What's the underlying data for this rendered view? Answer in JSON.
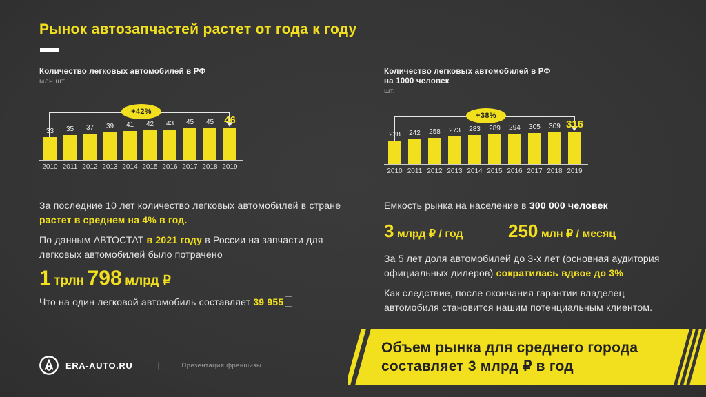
{
  "colors": {
    "accent_yellow": "#f2e01e",
    "background": "#363636",
    "text_primary": "#e6e6e6",
    "text_muted": "#a5a5a5",
    "banner_text": "#222222"
  },
  "slide": {
    "title": "Рынок автозапчастей растет от года к году",
    "footer": {
      "brand": "ERA-AUTO.RU",
      "divider": "|",
      "caption": "Презентация франшизы"
    },
    "banner": {
      "line1": "Объем рынка для среднего города",
      "line2": "составляет 3 млрд ₽ в год"
    }
  },
  "chart_data": [
    {
      "type": "bar",
      "title": "Количество легковых автомобилей в РФ",
      "title_line2": "",
      "subtitle": "млн шт.",
      "categories": [
        "2010",
        "2011",
        "2012",
        "2013",
        "2014",
        "2015",
        "2016",
        "2017",
        "2018",
        "2019"
      ],
      "values": [
        33,
        35,
        37,
        39,
        41,
        42,
        43,
        45,
        45,
        46
      ],
      "growth_badge": "+42%",
      "xlabel": "",
      "ylabel": "млн шт.",
      "ylim": [
        0,
        46
      ],
      "grid": false,
      "legend": false,
      "annotation": "growth bracket from 2010 to 2019 with arrow, last value highlighted"
    },
    {
      "type": "bar",
      "title": "Количество легковых автомобилей в РФ",
      "title_line2": "на 1000 человек",
      "subtitle": "шт.",
      "categories": [
        "2010",
        "2011",
        "2012",
        "2013",
        "2014",
        "2015",
        "2016",
        "2017",
        "2018",
        "2019"
      ],
      "values": [
        228,
        242,
        258,
        273,
        283,
        289,
        294,
        305,
        309,
        316
      ],
      "growth_badge": "+38%",
      "xlabel": "",
      "ylabel": "шт.",
      "ylim": [
        0,
        316
      ],
      "grid": false,
      "legend": false,
      "annotation": "growth bracket from 2010 to 2019 with arrow, last value highlighted"
    }
  ],
  "left_column": {
    "p1_normal": "За последние 10 лет количество легковых автомобилей в стране",
    "p1_highlight": "растет в среднем на 4% в год.",
    "p2_part1": "По данным АВТОСТАТ",
    "p2_highlight": "в 2021 году",
    "p2_part2": "в России на запчасти для легковых автомобилей было потрачено",
    "big_number": {
      "n1": "1",
      "u1": "трлн",
      "n2": "798",
      "u2": "млрд ₽"
    },
    "p3_part1": "Что на один легковой автомобиль составляет",
    "p3_highlight": "39 955"
  },
  "right_column": {
    "p1_normal": "Емкость рынка на население в",
    "p1_bold": "300 000 человек",
    "figure1": {
      "value": "3",
      "unit": "млрд ₽ / год"
    },
    "figure2": {
      "value": "250",
      "unit": "млн ₽ / месяц"
    },
    "p2_normal": "За 5 лет доля автомобилей до 3-х лет (основная аудитория официальных дилеров)",
    "p2_highlight": "сократилась вдвое до 3%",
    "p3": "Как следствие, после окончания гарантии владелец автомобиля становится нашим потенциальным клиентом."
  }
}
